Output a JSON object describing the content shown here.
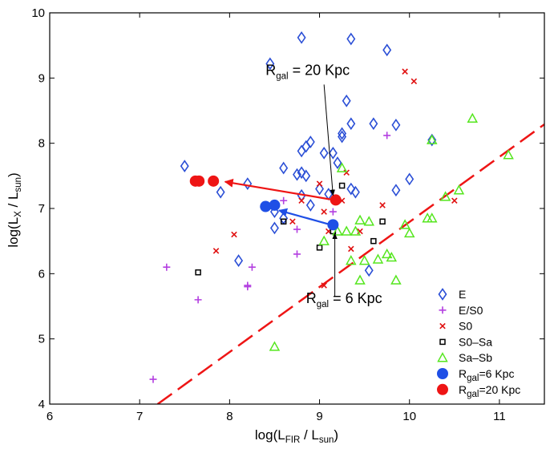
{
  "chart_data": {
    "type": "scatter",
    "xlim": [
      6,
      11.5
    ],
    "ylim": [
      4,
      10
    ],
    "xticks": [
      6,
      7,
      8,
      9,
      10,
      11
    ],
    "yticks": [
      4,
      5,
      6,
      7,
      8,
      9,
      10
    ],
    "xticklabels": [
      "6",
      "7",
      "8",
      "9",
      "10",
      "11"
    ],
    "yticklabels": [
      "4",
      "5",
      "6",
      "7",
      "8",
      "9",
      "10"
    ],
    "xlabel": {
      "main": "log(L",
      "sub1": "FIR",
      "mid": " / L",
      "sub2": "sun",
      "end": ")"
    },
    "ylabel": {
      "main": "log(L",
      "sub1": "X",
      "mid": " / L",
      "sub2": "sun",
      "end": ")"
    },
    "series": [
      {
        "name": "E",
        "marker": "diamond",
        "color": "#2b4fd6",
        "points": [
          [
            7.5,
            7.65
          ],
          [
            7.9,
            7.25
          ],
          [
            8.2,
            7.38
          ],
          [
            8.6,
            7.62
          ],
          [
            8.45,
            9.22
          ],
          [
            8.8,
            9.62
          ],
          [
            9.35,
            9.6
          ],
          [
            9.75,
            9.43
          ],
          [
            8.75,
            7.52
          ],
          [
            8.8,
            7.88
          ],
          [
            8.85,
            7.95
          ],
          [
            8.9,
            8.02
          ],
          [
            8.8,
            7.55
          ],
          [
            8.85,
            7.5
          ],
          [
            8.9,
            7.05
          ],
          [
            8.8,
            7.2
          ],
          [
            9.0,
            7.3
          ],
          [
            9.05,
            7.85
          ],
          [
            9.15,
            7.85
          ],
          [
            9.2,
            7.7
          ],
          [
            9.25,
            8.15
          ],
          [
            9.3,
            8.65
          ],
          [
            9.25,
            8.1
          ],
          [
            9.35,
            8.3
          ],
          [
            9.1,
            7.22
          ],
          [
            9.35,
            7.3
          ],
          [
            9.4,
            7.25
          ],
          [
            9.6,
            8.3
          ],
          [
            9.85,
            8.28
          ],
          [
            9.85,
            7.28
          ],
          [
            10.0,
            7.45
          ],
          [
            10.25,
            8.05
          ],
          [
            8.5,
            6.95
          ],
          [
            8.5,
            6.7
          ],
          [
            8.6,
            6.85
          ],
          [
            8.1,
            6.2
          ],
          [
            9.55,
            6.05
          ]
        ]
      },
      {
        "name": "E/S0",
        "marker": "plus",
        "color": "#b33fe0",
        "points": [
          [
            7.15,
            4.38
          ],
          [
            7.3,
            6.1
          ],
          [
            7.65,
            5.6
          ],
          [
            8.2,
            5.82
          ],
          [
            8.2,
            5.8
          ],
          [
            8.25,
            6.1
          ],
          [
            8.6,
            7.12
          ],
          [
            8.75,
            6.68
          ],
          [
            8.75,
            6.3
          ],
          [
            9.15,
            6.95
          ],
          [
            9.75,
            8.12
          ]
        ]
      },
      {
        "name": "S0",
        "marker": "x",
        "color": "#e01010",
        "points": [
          [
            7.85,
            6.35
          ],
          [
            8.05,
            6.6
          ],
          [
            8.7,
            6.8
          ],
          [
            8.8,
            7.12
          ],
          [
            9.0,
            7.38
          ],
          [
            9.05,
            6.95
          ],
          [
            9.05,
            5.82
          ],
          [
            9.1,
            6.65
          ],
          [
            9.25,
            7.12
          ],
          [
            9.3,
            7.55
          ],
          [
            9.35,
            6.38
          ],
          [
            9.45,
            6.65
          ],
          [
            9.7,
            7.05
          ],
          [
            9.95,
            9.1
          ],
          [
            10.05,
            8.95
          ],
          [
            10.5,
            7.12
          ]
        ]
      },
      {
        "name": "S0–Sa",
        "marker": "square",
        "color": "#000000",
        "points": [
          [
            7.65,
            6.02
          ],
          [
            8.6,
            6.8
          ],
          [
            9.0,
            6.4
          ],
          [
            9.15,
            6.65
          ],
          [
            9.25,
            7.35
          ],
          [
            9.6,
            6.5
          ],
          [
            9.7,
            6.8
          ]
        ]
      },
      {
        "name": "Sa–Sb",
        "marker": "triangle",
        "color": "#55e61e",
        "points": [
          [
            8.5,
            4.88
          ],
          [
            9.05,
            6.5
          ],
          [
            9.2,
            6.65
          ],
          [
            9.25,
            7.62
          ],
          [
            9.3,
            6.65
          ],
          [
            9.35,
            6.2
          ],
          [
            9.4,
            6.65
          ],
          [
            9.45,
            6.82
          ],
          [
            9.45,
            5.9
          ],
          [
            9.5,
            6.2
          ],
          [
            9.55,
            6.8
          ],
          [
            9.65,
            6.22
          ],
          [
            9.75,
            6.3
          ],
          [
            9.8,
            6.25
          ],
          [
            9.85,
            5.9
          ],
          [
            9.95,
            6.75
          ],
          [
            10.0,
            6.62
          ],
          [
            10.2,
            6.85
          ],
          [
            10.25,
            6.85
          ],
          [
            10.25,
            8.05
          ],
          [
            10.4,
            7.18
          ],
          [
            10.55,
            7.28
          ],
          [
            10.7,
            8.38
          ],
          [
            11.1,
            7.82
          ]
        ]
      },
      {
        "name": "6 Kpc",
        "legend_main": "R",
        "legend_sub": "gal",
        "legend_tail": "=6 Kpc",
        "marker": "circle",
        "color": "#1f4fe6",
        "points": [
          [
            8.4,
            7.03
          ],
          [
            8.5,
            7.05
          ],
          [
            9.15,
            6.75
          ]
        ]
      },
      {
        "name": "20 Kpc",
        "legend_main": "R",
        "legend_sub": "gal",
        "legend_tail": "=20 Kpc",
        "marker": "circle",
        "color": "#ee1515",
        "points": [
          [
            7.62,
            7.42
          ],
          [
            7.66,
            7.42
          ],
          [
            7.82,
            7.42
          ],
          [
            9.18,
            7.13
          ]
        ]
      }
    ],
    "arrows": [
      {
        "color": "#1f4fe6",
        "from": [
          9.1,
          6.76
        ],
        "to": [
          8.55,
          6.97
        ]
      },
      {
        "color": "#ee1515",
        "from": [
          9.12,
          7.14
        ],
        "to": [
          7.95,
          7.41
        ]
      }
    ],
    "fit_line": {
      "color": "#ee1515",
      "style": "dashed",
      "from": [
        7.2,
        4.0
      ],
      "to": [
        11.5,
        8.29
      ]
    },
    "annotations": [
      {
        "main": "R",
        "sub": "gal",
        "tail": " = 20 Kpc",
        "text_at": [
          8.4,
          9.05
        ],
        "arrow_from": [
          9.05,
          8.9
        ],
        "arrow_to": [
          9.15,
          7.2
        ]
      },
      {
        "main": "R",
        "sub": "gal",
        "tail": " = 6 Kpc",
        "text_at": [
          8.85,
          5.55
        ],
        "arrow_from": [
          9.17,
          5.65
        ],
        "arrow_to": [
          9.17,
          6.62
        ]
      }
    ]
  }
}
